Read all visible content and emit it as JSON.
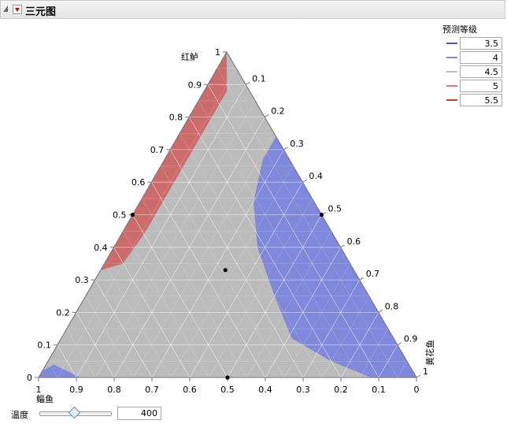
{
  "header": {
    "title": "三元图"
  },
  "chart_data": {
    "type": "ternary",
    "axes": {
      "top": {
        "label": "红鲈",
        "ticks": [
          "0",
          "0.1",
          "0.2",
          "0.3",
          "0.4",
          "0.5",
          "0.6",
          "0.7",
          "0.8",
          "0.9",
          "1"
        ]
      },
      "right": {
        "label": "黄花鱼",
        "ticks": [
          "0.1",
          "0.2",
          "0.3",
          "0.4",
          "0.5",
          "0.6",
          "0.7",
          "0.8",
          "0.9",
          "1"
        ]
      },
      "bottom": {
        "label": "鲻鱼",
        "ticks": [
          "1",
          "0.9",
          "0.8",
          "0.7",
          "0.6",
          "0.5",
          "0.4",
          "0.3",
          "0.2",
          "0.1",
          "0"
        ]
      }
    },
    "grid": true,
    "regions": [
      {
        "level": "5",
        "color": "#cc6b6b",
        "boundary": [
          [
            0.33,
            0.67,
            0
          ],
          [
            0.52,
            0.48,
            0
          ],
          [
            0.7,
            0.3,
            0
          ],
          [
            0.87,
            0.13,
            0
          ],
          [
            1,
            0,
            0
          ],
          [
            0.96,
            0.02,
            0.02
          ],
          [
            0.88,
            0.06,
            0.06
          ],
          [
            0.78,
            0.16,
            0.06
          ],
          [
            0.68,
            0.26,
            0.06
          ],
          [
            0.57,
            0.37,
            0.06
          ],
          [
            0.45,
            0.49,
            0.06
          ],
          [
            0.35,
            0.6,
            0.05
          ]
        ]
      },
      {
        "level": "3.5",
        "color": "#7f88da",
        "boundary": [
          [
            0.74,
            0,
            0.26
          ],
          [
            0.62,
            0,
            0.38
          ],
          [
            0.5,
            0,
            0.5
          ],
          [
            0.35,
            0,
            0.65
          ],
          [
            0.2,
            0,
            0.8
          ],
          [
            0.08,
            0,
            0.92
          ],
          [
            0,
            0,
            1
          ],
          [
            0,
            0.04,
            0.96
          ],
          [
            0,
            0.12,
            0.88
          ],
          [
            0.05,
            0.2,
            0.75
          ],
          [
            0.12,
            0.27,
            0.61
          ],
          [
            0.25,
            0.25,
            0.5
          ],
          [
            0.4,
            0.22,
            0.38
          ],
          [
            0.54,
            0.16,
            0.3
          ],
          [
            0.67,
            0.07,
            0.26
          ]
        ]
      },
      {
        "level": "3.5",
        "color": "#7f88da",
        "boundary": [
          [
            0,
            1,
            0
          ],
          [
            0.02,
            0.98,
            0
          ],
          [
            0.04,
            0.94,
            0.02
          ],
          [
            0,
            0.89,
            0.11
          ]
        ]
      }
    ],
    "points": [
      [
        0.5,
        0.5,
        0
      ],
      [
        0.5,
        0,
        0.5
      ],
      [
        0.33,
        0.34,
        0.33
      ],
      [
        0,
        0.5,
        0.5
      ]
    ],
    "legend": {
      "title": "预测等级",
      "placement": "top-right",
      "items": [
        {
          "label": "3.5",
          "color": "#4455cc"
        },
        {
          "label": "4",
          "color": "#8088dd"
        },
        {
          "label": "4.5",
          "color": "#bbbbbb"
        },
        {
          "label": "5",
          "color": "#dd7777"
        },
        {
          "label": "5.5",
          "color": "#dd3333"
        }
      ]
    }
  },
  "slider": {
    "label": "温度",
    "value": "400",
    "position": 0.5
  }
}
